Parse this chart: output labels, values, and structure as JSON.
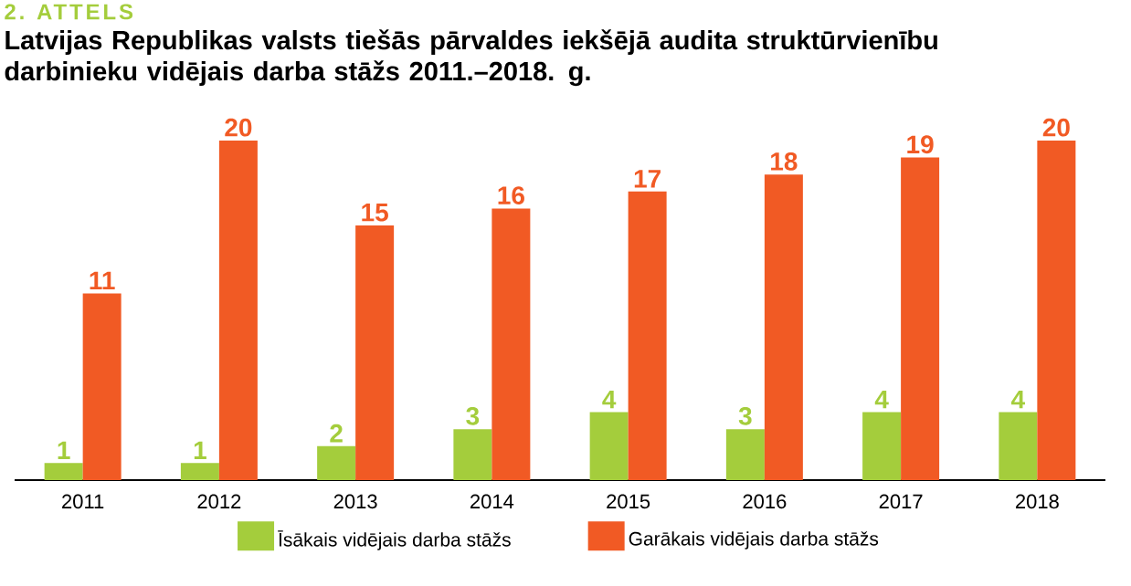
{
  "chart_data": {
    "type": "bar",
    "title": "2. ATTELS",
    "subtitle": "Latvijas Republikas valsts tiešās pārvaldes iekšējā audita struktūrvienību darbinieku vidējais darba stāžs 2011.–2018. g.",
    "categories": [
      "2011",
      "2012",
      "2013",
      "2014",
      "2015",
      "2016",
      "2017",
      "2018"
    ],
    "series": [
      {
        "name": "Īsākais vidējais darba stāžs",
        "color": "#a4cd3c",
        "values": [
          1,
          1,
          2,
          3,
          4,
          3,
          4,
          4
        ]
      },
      {
        "name": "Garākais vidējais darba stāžs",
        "color": "#f15a24",
        "values": [
          11,
          20,
          15,
          16,
          17,
          18,
          19,
          20
        ]
      }
    ],
    "data_labels": true,
    "legend": "bottom"
  }
}
